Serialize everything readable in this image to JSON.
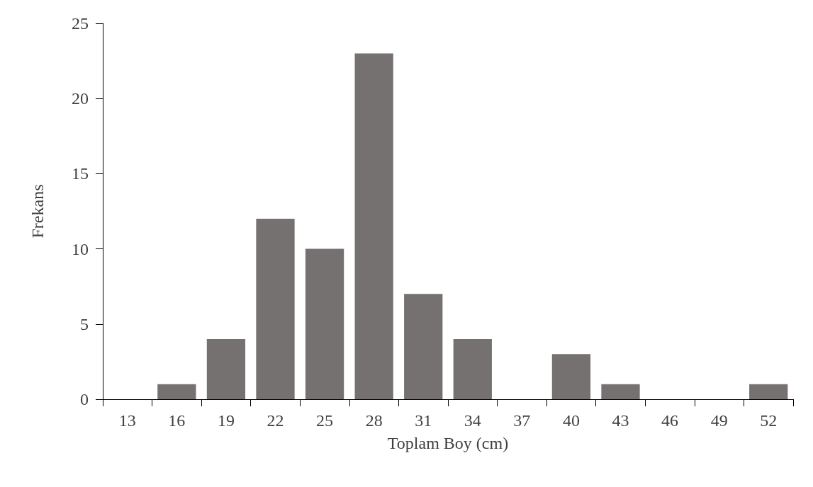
{
  "chart_data": {
    "type": "bar",
    "xlabel": "Toplam Boy (cm)",
    "ylabel": "Frekans",
    "categories": [
      "13",
      "16",
      "19",
      "22",
      "25",
      "28",
      "31",
      "34",
      "37",
      "40",
      "43",
      "46",
      "49",
      "52"
    ],
    "values": [
      0,
      1,
      4,
      12,
      10,
      23,
      7,
      4,
      0,
      3,
      1,
      0,
      0,
      1
    ],
    "color": "#757170",
    "ylim": [
      0,
      25
    ],
    "yticks": [
      0,
      5,
      10,
      15,
      20,
      25
    ],
    "grid": false
  }
}
